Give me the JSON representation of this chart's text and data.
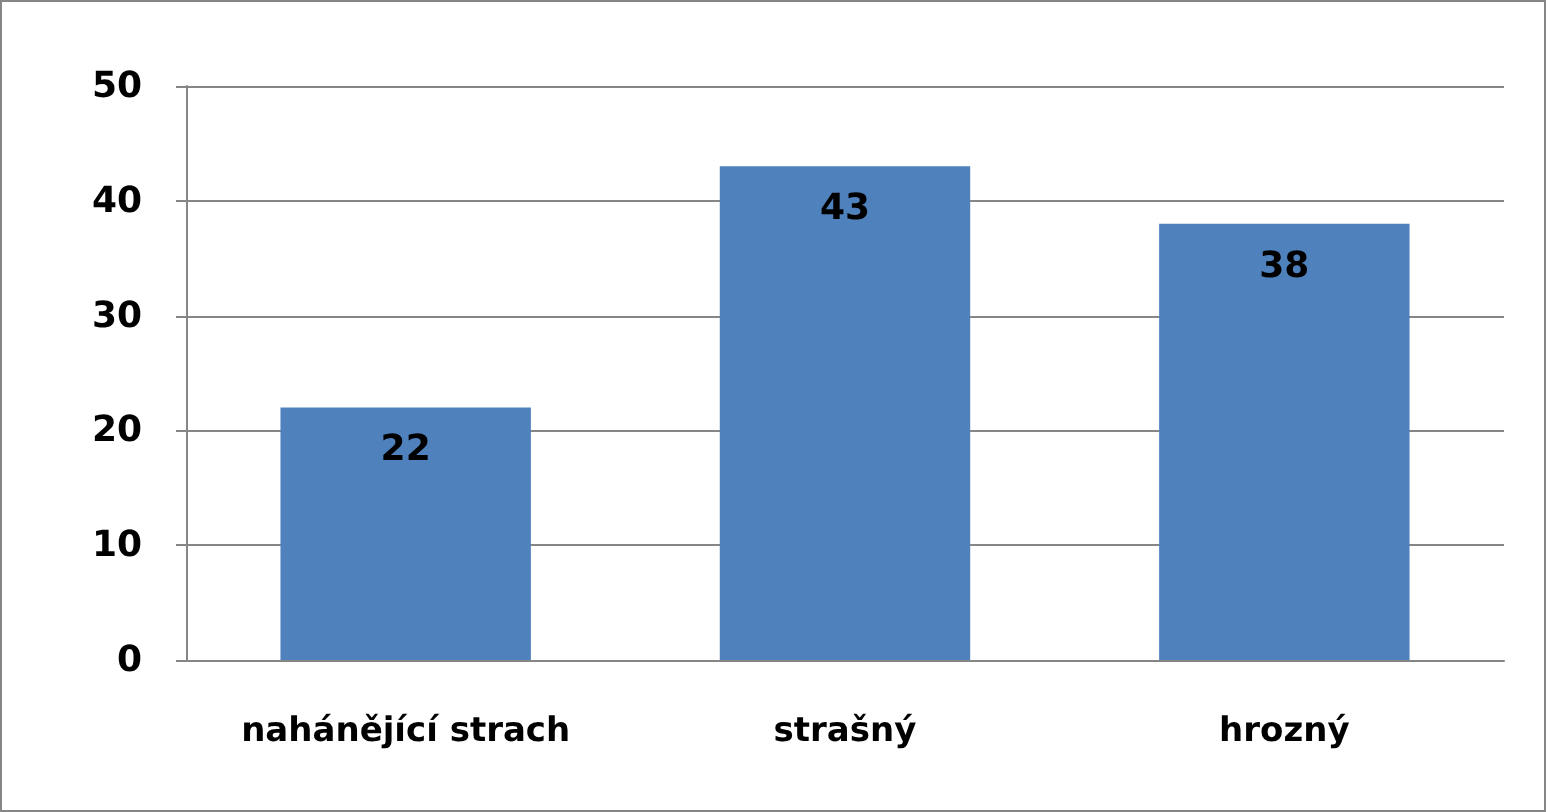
{
  "chart_data": {
    "type": "bar",
    "categories": [
      "nahánějící strach",
      "strašný",
      "hrozný"
    ],
    "values": [
      22,
      43,
      38
    ],
    "color": "#4f81bd",
    "ylim": [
      0,
      50
    ],
    "yticks": [
      0,
      10,
      20,
      30,
      40,
      50
    ],
    "grid": "y",
    "data_labels": true
  }
}
